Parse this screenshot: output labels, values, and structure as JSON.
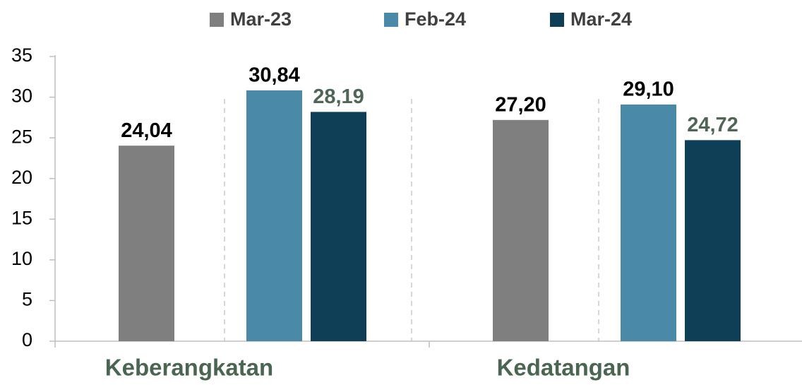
{
  "chart_data": {
    "type": "bar",
    "categories": [
      "Keberangkatan",
      "Kedatangan"
    ],
    "series": [
      {
        "name": "Mar-23",
        "color": "#7f7f7f",
        "label_color": "#000000",
        "values": [
          24.04,
          27.2
        ],
        "value_labels": [
          "24,04",
          "27,20"
        ]
      },
      {
        "name": "Feb-24",
        "color": "#4a89a8",
        "label_color": "#000000",
        "values": [
          30.84,
          29.1
        ],
        "value_labels": [
          "30,84",
          "29,10"
        ]
      },
      {
        "name": "Mar-24",
        "color": "#0f3f57",
        "label_color": "#4f6656",
        "values": [
          28.19,
          24.72
        ],
        "value_labels": [
          "28,19",
          "24,72"
        ]
      }
    ],
    "ylim": [
      0,
      35
    ],
    "yticks": [
      0,
      5,
      10,
      15,
      20,
      25,
      30,
      35
    ],
    "grid": false,
    "legend": "top"
  }
}
